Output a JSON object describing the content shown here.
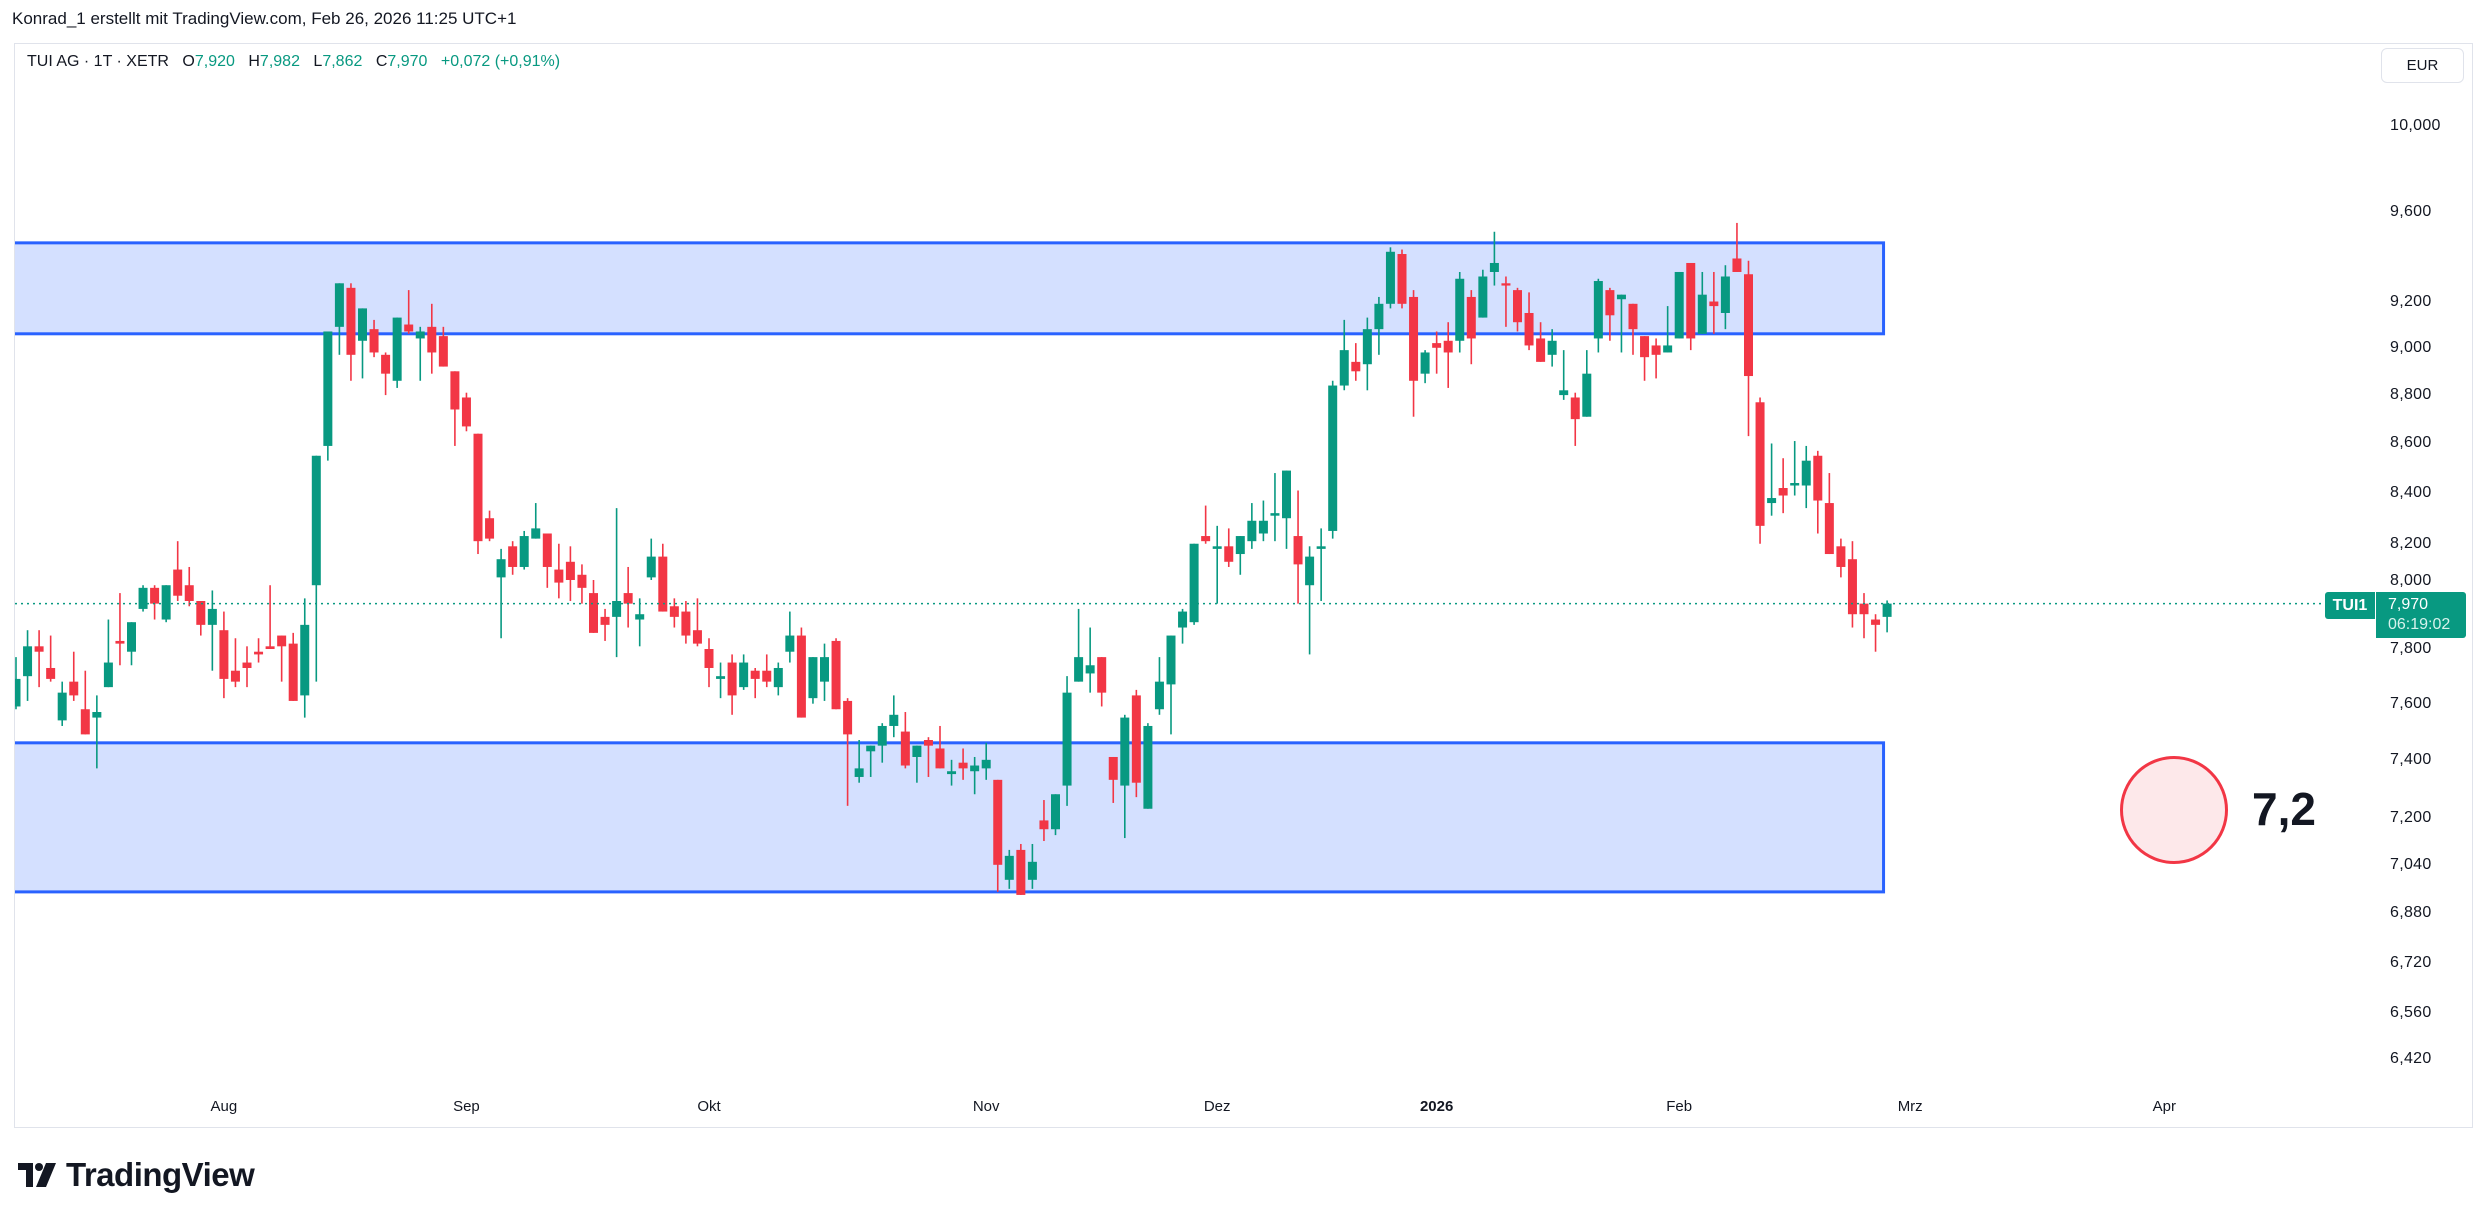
{
  "header": {
    "credit": "Konrad_1 erstellt mit TradingView.com, Feb 26, 2026 11:25 UTC+1"
  },
  "legend": {
    "symbol": "TUI AG · 1T · XETR",
    "open_label": "O",
    "open": "7,920",
    "high_label": "H",
    "high": "7,982",
    "low_label": "L",
    "low": "7,862",
    "close_label": "C",
    "close": "7,970",
    "change": "+0,072 (+0,91%)"
  },
  "currency_button": "EUR",
  "last_price": {
    "symbol_tag": "TUI1",
    "price": "7,970",
    "countdown": "06:19:02"
  },
  "annotation": {
    "text": "7,2"
  },
  "branding": {
    "logo_text": "TradingView"
  },
  "colors": {
    "up": "#089981",
    "down": "#f23645",
    "zone_fill": "#d4e0ff",
    "zone_border": "#2962ff",
    "circle_fill": "#fde8ea",
    "circle_border": "#f23645"
  },
  "chart_data": {
    "type": "candlestick",
    "title": "TUI AG · 1T · XETR",
    "scale": "log",
    "ylim": [
      6.3,
      10.05
    ],
    "y_ticks": [
      "10,000",
      "9,600",
      "9,200",
      "9,000",
      "8,800",
      "8,600",
      "8,400",
      "8,200",
      "8,000",
      "7,800",
      "7,600",
      "7,400",
      "7,200",
      "7,040",
      "6,880",
      "6,720",
      "6,560",
      "6,420"
    ],
    "x_ticks": [
      {
        "label": "Aug",
        "bar": 18
      },
      {
        "label": "Sep",
        "bar": 39
      },
      {
        "label": "Okt",
        "bar": 60
      },
      {
        "label": "Nov",
        "bar": 84
      },
      {
        "label": "Dez",
        "bar": 104
      },
      {
        "label": "2026",
        "bar": 123,
        "bold": true
      },
      {
        "label": "Feb",
        "bar": 144
      },
      {
        "label": "Mrz",
        "bar": 164
      },
      {
        "label": "Apr",
        "bar": 186
      }
    ],
    "zones": [
      {
        "name": "resistance-zone",
        "low": 9.06,
        "high": 9.46,
        "end_bar": 161
      },
      {
        "name": "support-zone",
        "low": 6.95,
        "high": 7.46,
        "end_bar": 161
      }
    ],
    "last_close": 7.97,
    "ohlc_fields": [
      "open",
      "high",
      "low",
      "close"
    ],
    "ohlc": [
      [
        7.59,
        7.77,
        7.58,
        7.69
      ],
      [
        7.7,
        7.87,
        7.61,
        7.81
      ],
      [
        7.81,
        7.87,
        7.66,
        7.79
      ],
      [
        7.73,
        7.85,
        7.68,
        7.69
      ],
      [
        7.54,
        7.68,
        7.52,
        7.64
      ],
      [
        7.68,
        7.79,
        7.61,
        7.63
      ],
      [
        7.58,
        7.72,
        7.49,
        7.49
      ],
      [
        7.55,
        7.63,
        7.37,
        7.57
      ],
      [
        7.66,
        7.91,
        7.66,
        7.75
      ],
      [
        7.83,
        8.01,
        7.74,
        7.82
      ],
      [
        7.79,
        7.9,
        7.74,
        7.9
      ],
      [
        7.95,
        8.04,
        7.94,
        8.03
      ],
      [
        8.03,
        8.04,
        7.91,
        7.97
      ],
      [
        7.91,
        8.04,
        7.9,
        8.04
      ],
      [
        8.1,
        8.21,
        7.98,
        8.0
      ],
      [
        8.04,
        8.11,
        7.96,
        7.98
      ],
      [
        7.98,
        7.98,
        7.85,
        7.89
      ],
      [
        7.89,
        8.02,
        7.72,
        7.95
      ],
      [
        7.87,
        7.94,
        7.62,
        7.69
      ],
      [
        7.72,
        7.84,
        7.66,
        7.68
      ],
      [
        7.75,
        7.81,
        7.66,
        7.73
      ],
      [
        7.79,
        7.84,
        7.75,
        7.78
      ],
      [
        7.81,
        8.04,
        7.8,
        7.8
      ],
      [
        7.85,
        7.85,
        7.68,
        7.81
      ],
      [
        7.82,
        7.86,
        7.61,
        7.61
      ],
      [
        7.63,
        7.99,
        7.55,
        7.89
      ],
      [
        8.04,
        8.55,
        7.68,
        8.55
      ],
      [
        8.59,
        9.07,
        8.53,
        9.07
      ],
      [
        9.09,
        9.28,
        8.97,
        9.28
      ],
      [
        9.26,
        9.28,
        8.86,
        8.97
      ],
      [
        9.03,
        9.17,
        8.87,
        9.17
      ],
      [
        9.08,
        9.12,
        8.96,
        8.98
      ],
      [
        8.97,
        8.98,
        8.8,
        8.89
      ],
      [
        8.86,
        9.13,
        8.83,
        9.13
      ],
      [
        9.1,
        9.25,
        9.06,
        9.07
      ],
      [
        9.04,
        9.09,
        8.86,
        9.07
      ],
      [
        9.09,
        9.19,
        8.89,
        8.98
      ],
      [
        9.05,
        9.09,
        8.92,
        8.92
      ],
      [
        8.9,
        8.9,
        8.59,
        8.74
      ],
      [
        8.79,
        8.81,
        8.65,
        8.67
      ],
      [
        8.64,
        8.64,
        8.16,
        8.21
      ],
      [
        8.3,
        8.33,
        8.21,
        8.22
      ],
      [
        8.07,
        8.18,
        7.84,
        8.14
      ],
      [
        8.19,
        8.21,
        8.08,
        8.11
      ],
      [
        8.11,
        8.25,
        8.1,
        8.23
      ],
      [
        8.22,
        8.36,
        8.22,
        8.26
      ],
      [
        8.24,
        8.24,
        8.03,
        8.11
      ],
      [
        8.1,
        8.2,
        7.99,
        8.05
      ],
      [
        8.13,
        8.19,
        7.98,
        8.06
      ],
      [
        8.08,
        8.12,
        7.97,
        8.03
      ],
      [
        8.01,
        8.06,
        7.86,
        7.86
      ],
      [
        7.92,
        7.95,
        7.83,
        7.89
      ],
      [
        7.92,
        8.34,
        7.77,
        7.98
      ],
      [
        8.01,
        8.11,
        7.88,
        7.97
      ],
      [
        7.91,
        7.99,
        7.81,
        7.93
      ],
      [
        8.07,
        8.22,
        8.06,
        8.15
      ],
      [
        8.15,
        8.2,
        7.94,
        7.94
      ],
      [
        7.96,
        7.99,
        7.88,
        7.92
      ],
      [
        7.94,
        7.98,
        7.82,
        7.85
      ],
      [
        7.87,
        7.99,
        7.81,
        7.82
      ],
      [
        7.8,
        7.84,
        7.66,
        7.73
      ],
      [
        7.69,
        7.75,
        7.62,
        7.7
      ],
      [
        7.75,
        7.78,
        7.56,
        7.63
      ],
      [
        7.66,
        7.78,
        7.65,
        7.75
      ],
      [
        7.72,
        7.73,
        7.62,
        7.69
      ],
      [
        7.72,
        7.78,
        7.66,
        7.68
      ],
      [
        7.66,
        7.75,
        7.63,
        7.73
      ],
      [
        7.79,
        7.94,
        7.75,
        7.85
      ],
      [
        7.85,
        7.88,
        7.55,
        7.55
      ],
      [
        7.62,
        7.77,
        7.6,
        7.77
      ],
      [
        7.68,
        7.82,
        7.61,
        7.77
      ],
      [
        7.83,
        7.84,
        7.58,
        7.58
      ],
      [
        7.61,
        7.62,
        7.24,
        7.49
      ],
      [
        7.34,
        7.47,
        7.32,
        7.37
      ],
      [
        7.43,
        7.45,
        7.34,
        7.45
      ],
      [
        7.45,
        7.53,
        7.39,
        7.52
      ],
      [
        7.52,
        7.63,
        7.48,
        7.56
      ],
      [
        7.5,
        7.57,
        7.37,
        7.38
      ],
      [
        7.41,
        7.45,
        7.32,
        7.45
      ],
      [
        7.47,
        7.48,
        7.34,
        7.45
      ],
      [
        7.44,
        7.52,
        7.37,
        7.37
      ],
      [
        7.35,
        7.4,
        7.31,
        7.36
      ],
      [
        7.39,
        7.44,
        7.33,
        7.37
      ],
      [
        7.36,
        7.41,
        7.28,
        7.38
      ],
      [
        7.37,
        7.46,
        7.33,
        7.4
      ],
      [
        7.33,
        7.33,
        6.95,
        7.04
      ],
      [
        6.99,
        7.09,
        6.96,
        7.07
      ],
      [
        7.09,
        7.11,
        6.94,
        6.94
      ],
      [
        6.99,
        7.11,
        6.96,
        7.05
      ],
      [
        7.19,
        7.26,
        7.12,
        7.16
      ],
      [
        7.16,
        7.28,
        7.14,
        7.28
      ],
      [
        7.31,
        7.7,
        7.24,
        7.64
      ],
      [
        7.68,
        7.95,
        7.68,
        7.77
      ],
      [
        7.71,
        7.88,
        7.64,
        7.74
      ],
      [
        7.77,
        7.77,
        7.59,
        7.64
      ],
      [
        7.41,
        7.41,
        7.25,
        7.33
      ],
      [
        7.31,
        7.56,
        7.13,
        7.55
      ],
      [
        7.63,
        7.65,
        7.27,
        7.32
      ],
      [
        7.23,
        7.53,
        7.23,
        7.52
      ],
      [
        7.58,
        7.77,
        7.56,
        7.68
      ],
      [
        7.67,
        7.85,
        7.49,
        7.85
      ],
      [
        7.88,
        7.95,
        7.82,
        7.94
      ],
      [
        7.9,
        8.2,
        7.89,
        8.2
      ],
      [
        8.23,
        8.35,
        8.2,
        8.21
      ],
      [
        8.18,
        8.27,
        7.97,
        8.19
      ],
      [
        8.19,
        8.26,
        8.11,
        8.13
      ],
      [
        8.16,
        8.23,
        8.08,
        8.23
      ],
      [
        8.21,
        8.36,
        8.18,
        8.29
      ],
      [
        8.24,
        8.37,
        8.21,
        8.29
      ],
      [
        8.31,
        8.48,
        8.21,
        8.32
      ],
      [
        8.3,
        8.49,
        8.18,
        8.49
      ],
      [
        8.23,
        8.41,
        7.97,
        8.12
      ],
      [
        8.04,
        8.19,
        7.78,
        8.15
      ],
      [
        8.18,
        8.26,
        7.98,
        8.19
      ],
      [
        8.25,
        8.86,
        8.22,
        8.84
      ],
      [
        8.84,
        9.12,
        8.82,
        8.99
      ],
      [
        8.94,
        9.02,
        8.86,
        8.9
      ],
      [
        8.93,
        9.13,
        8.82,
        9.08
      ],
      [
        9.08,
        9.22,
        8.97,
        9.19
      ],
      [
        9.19,
        9.44,
        9.17,
        9.42
      ],
      [
        9.41,
        9.43,
        9.17,
        9.19
      ],
      [
        9.22,
        9.25,
        8.71,
        8.86
      ],
      [
        8.89,
        8.99,
        8.85,
        8.98
      ],
      [
        9.02,
        9.07,
        8.89,
        9.0
      ],
      [
        9.03,
        9.11,
        8.83,
        8.98
      ],
      [
        9.03,
        9.33,
        8.98,
        9.3
      ],
      [
        9.22,
        9.25,
        8.93,
        9.04
      ],
      [
        9.13,
        9.34,
        9.13,
        9.31
      ],
      [
        9.33,
        9.51,
        9.27,
        9.37
      ],
      [
        9.28,
        9.31,
        9.09,
        9.27
      ],
      [
        9.25,
        9.26,
        9.07,
        9.11
      ],
      [
        9.15,
        9.24,
        8.99,
        9.01
      ],
      [
        9.04,
        9.11,
        8.94,
        8.94
      ],
      [
        8.97,
        9.08,
        8.92,
        9.03
      ],
      [
        8.8,
        8.99,
        8.78,
        8.82
      ],
      [
        8.79,
        8.81,
        8.59,
        8.7
      ],
      [
        8.71,
        8.99,
        8.71,
        8.89
      ],
      [
        9.04,
        9.3,
        8.98,
        9.29
      ],
      [
        9.25,
        9.26,
        9.03,
        9.14
      ],
      [
        9.21,
        9.23,
        8.98,
        9.23
      ],
      [
        9.19,
        9.19,
        8.97,
        9.08
      ],
      [
        9.05,
        9.05,
        8.86,
        8.96
      ],
      [
        9.01,
        9.04,
        8.87,
        8.97
      ],
      [
        8.98,
        9.18,
        8.98,
        9.01
      ],
      [
        9.04,
        9.33,
        9.04,
        9.33
      ],
      [
        9.37,
        9.37,
        8.99,
        9.04
      ],
      [
        9.06,
        9.33,
        9.06,
        9.23
      ],
      [
        9.2,
        9.33,
        9.06,
        9.18
      ],
      [
        9.15,
        9.36,
        9.08,
        9.31
      ],
      [
        9.39,
        9.55,
        9.33,
        9.33
      ],
      [
        9.32,
        9.38,
        8.63,
        8.88
      ],
      [
        8.77,
        8.79,
        8.2,
        8.27
      ],
      [
        8.36,
        8.6,
        8.31,
        8.38
      ],
      [
        8.42,
        8.54,
        8.32,
        8.39
      ],
      [
        8.43,
        8.61,
        8.39,
        8.44
      ],
      [
        8.43,
        8.59,
        8.34,
        8.53
      ],
      [
        8.55,
        8.57,
        8.24,
        8.37
      ],
      [
        8.36,
        8.48,
        8.16,
        8.16
      ],
      [
        8.19,
        8.22,
        8.07,
        8.11
      ],
      [
        8.14,
        8.21,
        7.88,
        7.93
      ],
      [
        7.97,
        8.01,
        7.84,
        7.93
      ],
      [
        7.91,
        7.93,
        7.79,
        7.89
      ],
      [
        7.92,
        7.982,
        7.862,
        7.97
      ]
    ]
  }
}
